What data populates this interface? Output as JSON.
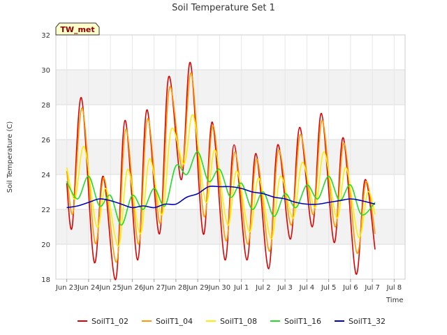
{
  "chart_data": {
    "type": "line",
    "title": "Soil Temperature Set 1",
    "xlabel": "Time",
    "ylabel": "Soil Temperature (C)",
    "badge": "TW_met",
    "ylim": [
      18,
      32
    ],
    "yticks": [
      18,
      20,
      22,
      24,
      26,
      28,
      30,
      32
    ],
    "xlim": [
      "2024-06-22 12:00",
      "2024-07-08 12:00"
    ],
    "xticks": [
      {
        "date": "2024-06-23",
        "label": "Jun 23"
      },
      {
        "date": "2024-06-24",
        "label": "Jun 24"
      },
      {
        "date": "2024-06-25",
        "label": "Jun 25"
      },
      {
        "date": "2024-06-26",
        "label": "Jun 26"
      },
      {
        "date": "2024-06-27",
        "label": "Jun 27"
      },
      {
        "date": "2024-06-28",
        "label": "Jun 28"
      },
      {
        "date": "2024-06-29",
        "label": "Jun 29"
      },
      {
        "date": "2024-06-30",
        "label": "Jun 30"
      },
      {
        "date": "2024-07-01",
        "label": "Jul 1"
      },
      {
        "date": "2024-07-02",
        "label": "Jul 2"
      },
      {
        "date": "2024-07-03",
        "label": "Jul 3"
      },
      {
        "date": "2024-07-04",
        "label": "Jul 4"
      },
      {
        "date": "2024-07-05",
        "label": "Jul 5"
      },
      {
        "date": "2024-07-06",
        "label": "Jul 6"
      },
      {
        "date": "2024-07-07",
        "label": "Jul 7"
      },
      {
        "date": "2024-07-08",
        "label": "Jul 8"
      }
    ],
    "grid": true,
    "legend_position": "bottom",
    "series": [
      {
        "name": "SoilT1_02",
        "color": "#dd0000",
        "points": [
          [
            "2024-06-23 00:00",
            23.5
          ],
          [
            "2024-06-23 06:00",
            21.0
          ],
          [
            "2024-06-23 16:00",
            28.4
          ],
          [
            "2024-06-24 06:00",
            19.0
          ],
          [
            "2024-06-24 16:00",
            23.9
          ],
          [
            "2024-06-25 06:00",
            18.0
          ],
          [
            "2024-06-25 16:00",
            27.1
          ],
          [
            "2024-06-26 06:00",
            19.1
          ],
          [
            "2024-06-26 16:00",
            27.7
          ],
          [
            "2024-06-27 06:00",
            20.6
          ],
          [
            "2024-06-27 16:00",
            29.6
          ],
          [
            "2024-06-28 06:00",
            23.7
          ],
          [
            "2024-06-28 16:00",
            30.4
          ],
          [
            "2024-06-29 06:00",
            20.6
          ],
          [
            "2024-06-29 16:00",
            27.0
          ],
          [
            "2024-06-30 06:00",
            19.1
          ],
          [
            "2024-06-30 16:00",
            25.7
          ],
          [
            "2024-07-01 06:00",
            19.1
          ],
          [
            "2024-07-01 16:00",
            25.2
          ],
          [
            "2024-07-02 06:00",
            18.6
          ],
          [
            "2024-07-02 16:00",
            25.7
          ],
          [
            "2024-07-03 06:00",
            20.3
          ],
          [
            "2024-07-03 16:00",
            26.7
          ],
          [
            "2024-07-04 06:00",
            21.0
          ],
          [
            "2024-07-04 16:00",
            27.5
          ],
          [
            "2024-07-05 06:00",
            20.1
          ],
          [
            "2024-07-05 16:00",
            26.1
          ],
          [
            "2024-07-06 06:00",
            18.3
          ],
          [
            "2024-07-06 16:00",
            23.7
          ],
          [
            "2024-07-07 03:00",
            19.7
          ]
        ]
      },
      {
        "name": "SoilT1_04",
        "color": "#ff9900",
        "points": [
          [
            "2024-06-23 00:00",
            24.2
          ],
          [
            "2024-06-23 07:00",
            21.8
          ],
          [
            "2024-06-23 17:00",
            27.8
          ],
          [
            "2024-06-24 07:00",
            20.1
          ],
          [
            "2024-06-24 17:00",
            23.8
          ],
          [
            "2024-06-25 07:00",
            19.0
          ],
          [
            "2024-06-25 17:00",
            26.6
          ],
          [
            "2024-06-26 07:00",
            20.0
          ],
          [
            "2024-06-26 17:00",
            27.2
          ],
          [
            "2024-06-27 07:00",
            21.2
          ],
          [
            "2024-06-27 17:00",
            29.0
          ],
          [
            "2024-06-28 07:00",
            24.4
          ],
          [
            "2024-06-28 17:00",
            29.8
          ],
          [
            "2024-06-29 07:00",
            21.6
          ],
          [
            "2024-06-29 17:00",
            26.8
          ],
          [
            "2024-06-30 07:00",
            20.2
          ],
          [
            "2024-06-30 17:00",
            25.3
          ],
          [
            "2024-07-01 07:00",
            20.0
          ],
          [
            "2024-07-01 17:00",
            24.9
          ],
          [
            "2024-07-02 07:00",
            19.6
          ],
          [
            "2024-07-02 17:00",
            25.4
          ],
          [
            "2024-07-03 07:00",
            21.1
          ],
          [
            "2024-07-03 17:00",
            26.3
          ],
          [
            "2024-07-04 07:00",
            21.7
          ],
          [
            "2024-07-04 17:00",
            27.1
          ],
          [
            "2024-07-05 07:00",
            21.0
          ],
          [
            "2024-07-05 17:00",
            25.8
          ],
          [
            "2024-07-06 07:00",
            19.5
          ],
          [
            "2024-07-06 17:00",
            23.6
          ],
          [
            "2024-07-07 03:00",
            20.6
          ]
        ]
      },
      {
        "name": "SoilT1_08",
        "color": "#ffee00",
        "points": [
          [
            "2024-06-23 00:00",
            24.4
          ],
          [
            "2024-06-23 09:00",
            22.6
          ],
          [
            "2024-06-23 19:00",
            25.6
          ],
          [
            "2024-06-24 09:00",
            21.0
          ],
          [
            "2024-06-24 19:00",
            23.2
          ],
          [
            "2024-06-25 09:00",
            19.9
          ],
          [
            "2024-06-25 19:00",
            24.3
          ],
          [
            "2024-06-26 09:00",
            20.6
          ],
          [
            "2024-06-26 19:00",
            24.9
          ],
          [
            "2024-06-27 09:00",
            21.7
          ],
          [
            "2024-06-27 19:00",
            26.6
          ],
          [
            "2024-06-28 09:00",
            24.6
          ],
          [
            "2024-06-28 19:00",
            27.4
          ],
          [
            "2024-06-29 09:00",
            22.4
          ],
          [
            "2024-06-29 19:00",
            25.4
          ],
          [
            "2024-06-30 09:00",
            21.1
          ],
          [
            "2024-06-30 19:00",
            24.2
          ],
          [
            "2024-07-01 09:00",
            20.7
          ],
          [
            "2024-07-01 19:00",
            23.8
          ],
          [
            "2024-07-02 09:00",
            20.3
          ],
          [
            "2024-07-02 19:00",
            23.9
          ],
          [
            "2024-07-03 09:00",
            21.5
          ],
          [
            "2024-07-03 19:00",
            24.7
          ],
          [
            "2024-07-04 09:00",
            22.1
          ],
          [
            "2024-07-04 19:00",
            25.3
          ],
          [
            "2024-07-05 09:00",
            21.5
          ],
          [
            "2024-07-05 19:00",
            24.4
          ],
          [
            "2024-07-06 09:00",
            20.4
          ],
          [
            "2024-07-06 19:00",
            23.0
          ],
          [
            "2024-07-07 03:00",
            21.7
          ]
        ]
      },
      {
        "name": "SoilT1_16",
        "color": "#22dd22",
        "points": [
          [
            "2024-06-23 00:00",
            23.6
          ],
          [
            "2024-06-23 12:00",
            22.6
          ],
          [
            "2024-06-24 00:00",
            23.9
          ],
          [
            "2024-06-24 12:00",
            22.2
          ],
          [
            "2024-06-25 00:00",
            22.8
          ],
          [
            "2024-06-25 12:00",
            21.1
          ],
          [
            "2024-06-26 00:00",
            22.8
          ],
          [
            "2024-06-26 12:00",
            22.0
          ],
          [
            "2024-06-27 00:00",
            23.2
          ],
          [
            "2024-06-27 12:00",
            22.2
          ],
          [
            "2024-06-28 00:00",
            24.5
          ],
          [
            "2024-06-28 12:00",
            24.0
          ],
          [
            "2024-06-29 00:00",
            25.3
          ],
          [
            "2024-06-29 12:00",
            23.6
          ],
          [
            "2024-06-30 00:00",
            24.3
          ],
          [
            "2024-06-30 12:00",
            22.7
          ],
          [
            "2024-07-01 00:00",
            23.5
          ],
          [
            "2024-07-01 12:00",
            22.0
          ],
          [
            "2024-07-02 00:00",
            23.0
          ],
          [
            "2024-07-02 12:00",
            21.6
          ],
          [
            "2024-07-03 00:00",
            22.9
          ],
          [
            "2024-07-03 12:00",
            22.1
          ],
          [
            "2024-07-04 00:00",
            23.4
          ],
          [
            "2024-07-04 12:00",
            22.6
          ],
          [
            "2024-07-05 00:00",
            23.9
          ],
          [
            "2024-07-05 12:00",
            22.5
          ],
          [
            "2024-07-06 00:00",
            23.4
          ],
          [
            "2024-07-06 12:00",
            21.7
          ],
          [
            "2024-07-07 03:00",
            22.4
          ]
        ]
      },
      {
        "name": "SoilT1_32",
        "color": "#0000bb",
        "points": [
          [
            "2024-06-23 00:00",
            22.1
          ],
          [
            "2024-06-23 12:00",
            22.2
          ],
          [
            "2024-06-24 00:00",
            22.4
          ],
          [
            "2024-06-24 12:00",
            22.6
          ],
          [
            "2024-06-25 00:00",
            22.5
          ],
          [
            "2024-06-25 12:00",
            22.3
          ],
          [
            "2024-06-26 00:00",
            22.1
          ],
          [
            "2024-06-26 12:00",
            22.2
          ],
          [
            "2024-06-27 00:00",
            22.1
          ],
          [
            "2024-06-27 12:00",
            22.3
          ],
          [
            "2024-06-28 00:00",
            22.3
          ],
          [
            "2024-06-28 12:00",
            22.7
          ],
          [
            "2024-06-29 00:00",
            22.9
          ],
          [
            "2024-06-29 12:00",
            23.3
          ],
          [
            "2024-06-30 00:00",
            23.3
          ],
          [
            "2024-06-30 12:00",
            23.3
          ],
          [
            "2024-07-01 00:00",
            23.2
          ],
          [
            "2024-07-01 12:00",
            23.0
          ],
          [
            "2024-07-02 00:00",
            22.9
          ],
          [
            "2024-07-02 12:00",
            22.7
          ],
          [
            "2024-07-03 00:00",
            22.6
          ],
          [
            "2024-07-03 12:00",
            22.4
          ],
          [
            "2024-07-04 00:00",
            22.3
          ],
          [
            "2024-07-04 12:00",
            22.3
          ],
          [
            "2024-07-05 00:00",
            22.4
          ],
          [
            "2024-07-05 12:00",
            22.5
          ],
          [
            "2024-07-06 00:00",
            22.6
          ],
          [
            "2024-07-06 12:00",
            22.5
          ],
          [
            "2024-07-07 03:00",
            22.3
          ]
        ]
      }
    ]
  }
}
